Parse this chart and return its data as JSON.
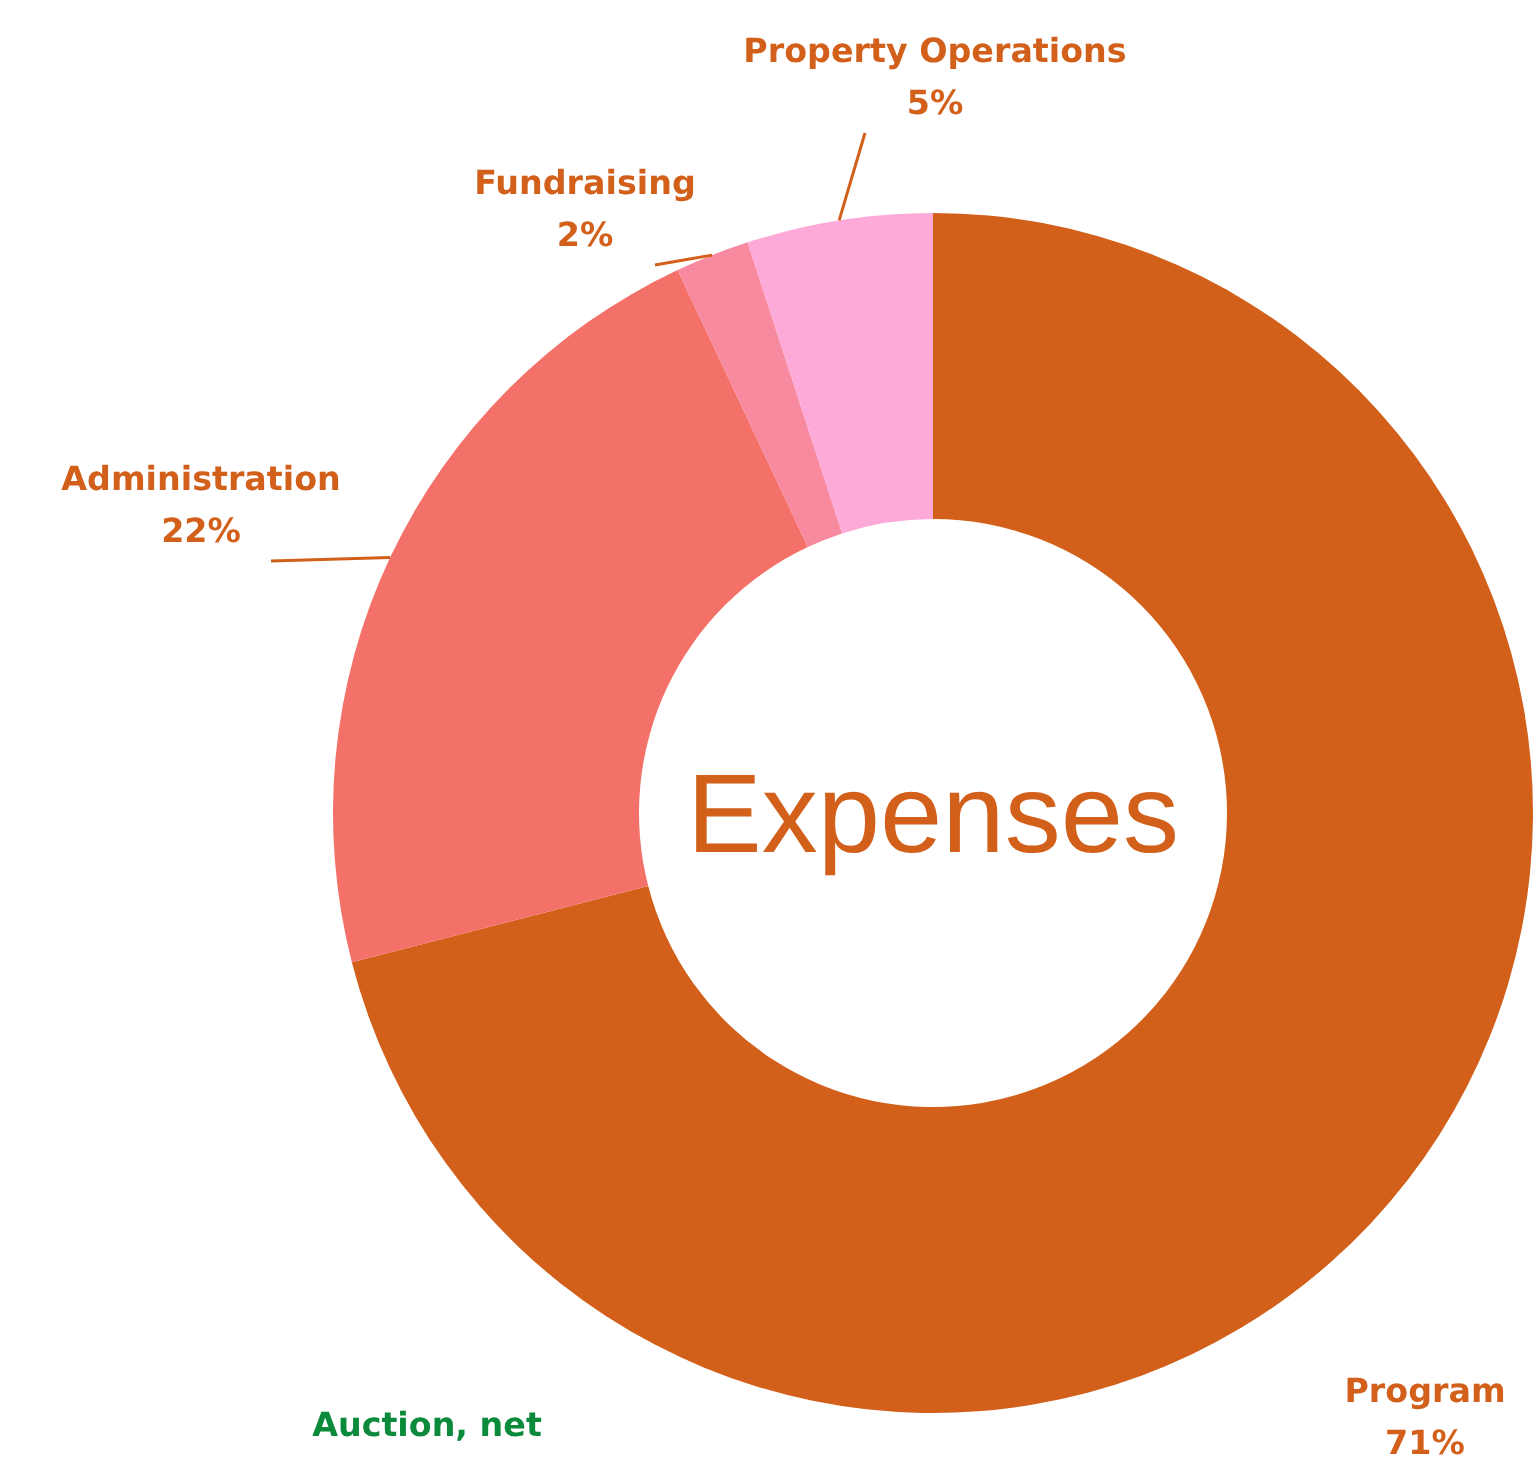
{
  "chart_data": {
    "type": "donut",
    "title": "Expenses",
    "categories": [
      "Program",
      "Administration",
      "Fundraising",
      "Property Operations"
    ],
    "values": [
      71,
      22,
      2,
      5
    ],
    "colors": [
      "#d2601a",
      "#f4716a",
      "#f88aa0",
      "#fdaad9"
    ],
    "value_labels": [
      "71%",
      "22%",
      "2%",
      "5%"
    ],
    "annotations": [
      "Auction, net"
    ]
  }
}
